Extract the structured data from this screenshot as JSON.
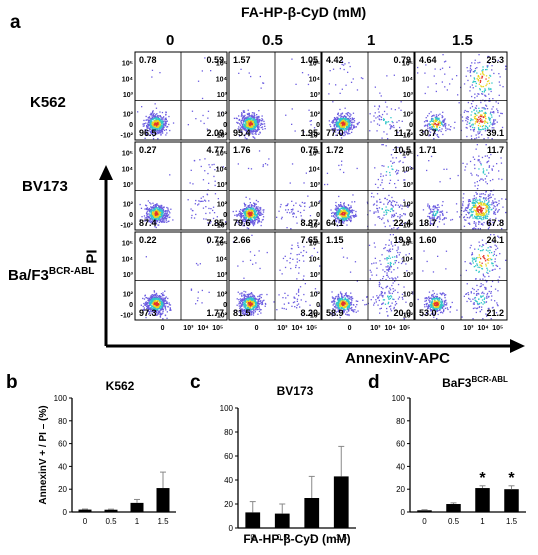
{
  "panel_a": {
    "letter": "a",
    "title": "FA-HP-β-CyD (mM)",
    "concentrations": [
      "0",
      "0.5",
      "1",
      "1.5"
    ],
    "cell_lines": [
      {
        "name": "K562",
        "sup": ""
      },
      {
        "name": "BV173",
        "sup": ""
      },
      {
        "name": "Ba/F3",
        "sup": "BCR-ABL"
      }
    ],
    "y_axis_label": "PI",
    "x_axis_label": "AnnexinV-APC",
    "y_ticks": [
      "10⁵",
      "10⁴",
      "10³",
      "10²",
      "0",
      "-10²"
    ],
    "x_ticks": [
      "0",
      "10³",
      "10⁴",
      "10⁵"
    ],
    "quadrants": [
      [
        [
          "0.78",
          "0.59",
          "96.5",
          "2.09"
        ],
        [
          "1.57",
          "1.05",
          "95.4",
          "1.95"
        ],
        [
          "4.42",
          "0.79",
          "77.0",
          "11.7"
        ],
        [
          "4.64",
          "25.3",
          "30.7",
          "39.1"
        ]
      ],
      [
        [
          "0.27",
          "4.77",
          "87.4",
          "7.85"
        ],
        [
          "1.76",
          "0.75",
          "79.6",
          "8.87"
        ],
        [
          "1.72",
          "10.5",
          "64.1",
          "22.4"
        ],
        [
          "1.71",
          "11.7",
          "18.7",
          "67.8"
        ]
      ],
      [
        [
          "0.22",
          "0.72",
          "97.3",
          "1.77"
        ],
        [
          "2.66",
          "7.65",
          "81.5",
          "8.20"
        ],
        [
          "1.15",
          "19.9",
          "58.9",
          "20.0"
        ],
        [
          "1.60",
          "24.1",
          "53.0",
          "21.2"
        ]
      ]
    ]
  },
  "chart_data": [
    {
      "type": "bar",
      "panel": "b",
      "title": "K562",
      "categories": [
        "0",
        "0.5",
        "1",
        "1.5"
      ],
      "values": [
        2.1,
        2.0,
        8.0,
        21
      ],
      "error": [
        0.5,
        0.5,
        3,
        14
      ],
      "ylabel": "AnnexinV + / PI – (%)",
      "ylim": [
        0,
        100
      ],
      "yticks": [
        0,
        20,
        40,
        60,
        80,
        100
      ],
      "significance": [
        "",
        "",
        "",
        ""
      ]
    },
    {
      "type": "bar",
      "panel": "c",
      "title": "BV173",
      "categories": [
        "0",
        "0.5",
        "1",
        "1.5"
      ],
      "values": [
        13,
        12,
        25,
        43
      ],
      "error": [
        9,
        8,
        18,
        25
      ],
      "xlabel": "FA-HP-β-CyD (mM)",
      "ylim": [
        0,
        100
      ],
      "yticks": [
        0,
        20,
        40,
        60,
        80,
        100
      ],
      "significance": [
        "",
        "",
        "",
        ""
      ]
    },
    {
      "type": "bar",
      "panel": "d",
      "title": "BaF3",
      "title_sup": "BCR-ABL",
      "categories": [
        "0",
        "0.5",
        "1",
        "1.5"
      ],
      "values": [
        1.5,
        7.0,
        21,
        20
      ],
      "error": [
        0.5,
        1,
        2,
        3
      ],
      "ylim": [
        0,
        100
      ],
      "yticks": [
        0,
        20,
        40,
        60,
        80,
        100
      ],
      "significance": [
        "",
        "",
        "*",
        "*"
      ]
    }
  ],
  "colors": {
    "bar": "#000000",
    "axis": "#000000",
    "flow_sparse": "#6b5ce0",
    "flow_mid": "#31c6c9",
    "flow_hot": "#e8d71e",
    "flow_core": "#e6342a",
    "quadrant_line": "#000000"
  }
}
